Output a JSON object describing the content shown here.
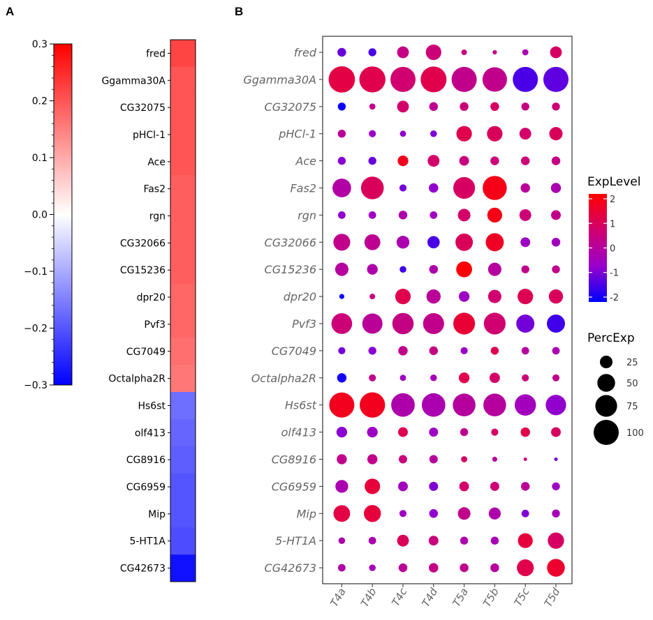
{
  "chart_data": [
    {
      "panel": "A",
      "type": "heatmap",
      "title": "",
      "genes": [
        "fred",
        "Ggamma30A",
        "CG32075",
        "pHCl-1",
        "Ace",
        "Fas2",
        "rgn",
        "CG32066",
        "CG15236",
        "dpr20",
        "Pvf3",
        "CG7049",
        "Octalpha2R",
        "Hs6st",
        "olf413",
        "CG8916",
        "CG6959",
        "Mip",
        "5-HT1A",
        "CG42673"
      ],
      "values": [
        0.22,
        0.2,
        0.2,
        0.2,
        0.2,
        0.19,
        0.19,
        0.19,
        0.19,
        0.18,
        0.18,
        0.17,
        0.16,
        -0.17,
        -0.18,
        -0.19,
        -0.2,
        -0.2,
        -0.21,
        -0.28
      ],
      "colorbar": {
        "range": [
          -0.3,
          0.3
        ],
        "ticks": [
          0.3,
          0.2,
          0.1,
          0.0,
          -0.1,
          -0.2,
          -0.3
        ],
        "tick_labels": [
          "0.3",
          "0.2",
          "0.1",
          "0.0",
          "−0.1",
          "−0.2",
          "−0.3"
        ],
        "colormap": [
          "#0000ff",
          "#ffffff",
          "#ff0000"
        ]
      }
    },
    {
      "panel": "B",
      "type": "scatter",
      "subtype": "dotplot",
      "categories": [
        "T4a",
        "T4b",
        "T4c",
        "T4d",
        "T5a",
        "T5b",
        "T5c",
        "T5d"
      ],
      "genes": [
        "fred",
        "Ggamma30A",
        "CG32075",
        "pHCl-1",
        "Ace",
        "Fas2",
        "rgn",
        "CG32066",
        "CG15236",
        "dpr20",
        "Pvf3",
        "CG7049",
        "Octalpha2R",
        "Hs6st",
        "olf413",
        "CG8916",
        "CG6959",
        "Mip",
        "5-HT1A",
        "CG42673"
      ],
      "perc_exp": [
        [
          12,
          10,
          22,
          38,
          5,
          3,
          6,
          22
        ],
        [
          110,
          108,
          100,
          106,
          100,
          95,
          100,
          100
        ],
        [
          10,
          6,
          22,
          12,
          12,
          12,
          10,
          10
        ],
        [
          10,
          8,
          6,
          7,
          38,
          38,
          22,
          28
        ],
        [
          10,
          10,
          18,
          22,
          15,
          12,
          12,
          12
        ],
        [
          55,
          82,
          8,
          14,
          75,
          92,
          14,
          16
        ],
        [
          9,
          9,
          12,
          9,
          25,
          35,
          22,
          15
        ],
        [
          45,
          40,
          26,
          24,
          48,
          52,
          15,
          12
        ],
        [
          28,
          18,
          7,
          12,
          40,
          28,
          10,
          10
        ],
        [
          4,
          5,
          38,
          32,
          18,
          28,
          38,
          32
        ],
        [
          68,
          65,
          72,
          70,
          75,
          75,
          52,
          52
        ],
        [
          8,
          10,
          14,
          12,
          8,
          10,
          9,
          9
        ],
        [
          14,
          8,
          6,
          7,
          18,
          17,
          8,
          8
        ],
        [
          100,
          102,
          88,
          88,
          82,
          82,
          72,
          66
        ],
        [
          18,
          18,
          15,
          13,
          10,
          8,
          14,
          15
        ],
        [
          16,
          16,
          11,
          11,
          6,
          4,
          2,
          2
        ],
        [
          26,
          38,
          15,
          13,
          15,
          13,
          12,
          10
        ],
        [
          44,
          46,
          8,
          12,
          25,
          23,
          9,
          10
        ],
        [
          7,
          9,
          22,
          15,
          10,
          10,
          35,
          42
        ],
        [
          9,
          7,
          12,
          14,
          12,
          12,
          45,
          50
        ]
      ],
      "exp_level": [
        [
          -1.2,
          -1.5,
          0.4,
          0.6,
          0.5,
          0.4,
          -0.3,
          0.9
        ],
        [
          1.3,
          1.2,
          0.7,
          1.2,
          0.3,
          0.3,
          -1.5,
          -1.3
        ],
        [
          -2.1,
          0.3,
          0.8,
          0.2,
          0.6,
          0.9,
          0.4,
          0.6
        ],
        [
          0.1,
          -0.7,
          -0.8,
          -1.0,
          1.2,
          1.0,
          0.8,
          1.0
        ],
        [
          -0.9,
          -1.2,
          1.8,
          0.8,
          0.5,
          0.6,
          0.6,
          0.4
        ],
        [
          -0.1,
          1.0,
          -1.1,
          -0.8,
          0.9,
          1.9,
          0.1,
          -0.3
        ],
        [
          -0.8,
          -0.6,
          -0.2,
          -0.5,
          0.8,
          1.9,
          0.6,
          0.3
        ],
        [
          0.3,
          0.2,
          -0.3,
          -1.5,
          1.0,
          1.7,
          -0.6,
          -0.5
        ],
        [
          0.0,
          -0.2,
          -1.6,
          -0.2,
          2.1,
          0.0,
          0.3,
          0.3
        ],
        [
          -2.1,
          0.6,
          1.2,
          0.1,
          -0.6,
          0.7,
          1.1,
          1.0
        ],
        [
          0.6,
          0.1,
          0.4,
          0.3,
          1.5,
          0.7,
          -1.1,
          -1.6
        ],
        [
          -1.1,
          -0.9,
          0.3,
          0.4,
          -0.7,
          1.2,
          0.0,
          -0.3
        ],
        [
          -2.0,
          0.3,
          -0.6,
          -0.4,
          1.2,
          0.8,
          0.6,
          0.3
        ],
        [
          1.8,
          1.8,
          -0.2,
          -0.3,
          0.0,
          0.0,
          -0.5,
          -0.8
        ],
        [
          -0.9,
          -0.6,
          1.1,
          -0.6,
          0.3,
          0.9,
          1.2,
          0.9
        ],
        [
          0.3,
          0.3,
          0.5,
          0.0,
          0.9,
          0.0,
          0.6,
          -1.1
        ],
        [
          -0.3,
          1.4,
          -0.5,
          -1.0,
          0.8,
          0.6,
          0.1,
          -0.6
        ],
        [
          1.3,
          1.4,
          -0.6,
          -0.8,
          0.3,
          -0.2,
          -1.0,
          -0.4
        ],
        [
          -0.2,
          -0.3,
          1.0,
          0.5,
          -0.2,
          -0.4,
          1.4,
          0.9
        ],
        [
          -0.1,
          -0.4,
          0.1,
          0.4,
          0.3,
          0.0,
          1.2,
          1.6
        ]
      ],
      "legend": {
        "color_title": "ExpLevel",
        "color_range": [
          -2.2,
          2.2
        ],
        "color_ticks": [
          2,
          1,
          0,
          -1,
          -2
        ],
        "color_tick_labels": [
          "2",
          "1",
          "0",
          "-1",
          "-2"
        ],
        "colormap": [
          "#0000ff",
          "#9900cc",
          "#d1006e",
          "#ff0000"
        ],
        "size_title": "PercExp",
        "size_values": [
          25,
          50,
          75,
          100
        ],
        "size_labels": [
          "25",
          "50",
          "75",
          "100"
        ]
      }
    }
  ],
  "panel_labels": {
    "a": "A",
    "b": "B"
  },
  "colors": {
    "dot_high": "#ff0000",
    "dot_mid": "#d1006e",
    "dot_low": "#0000ff",
    "axis_text": "#666666"
  }
}
